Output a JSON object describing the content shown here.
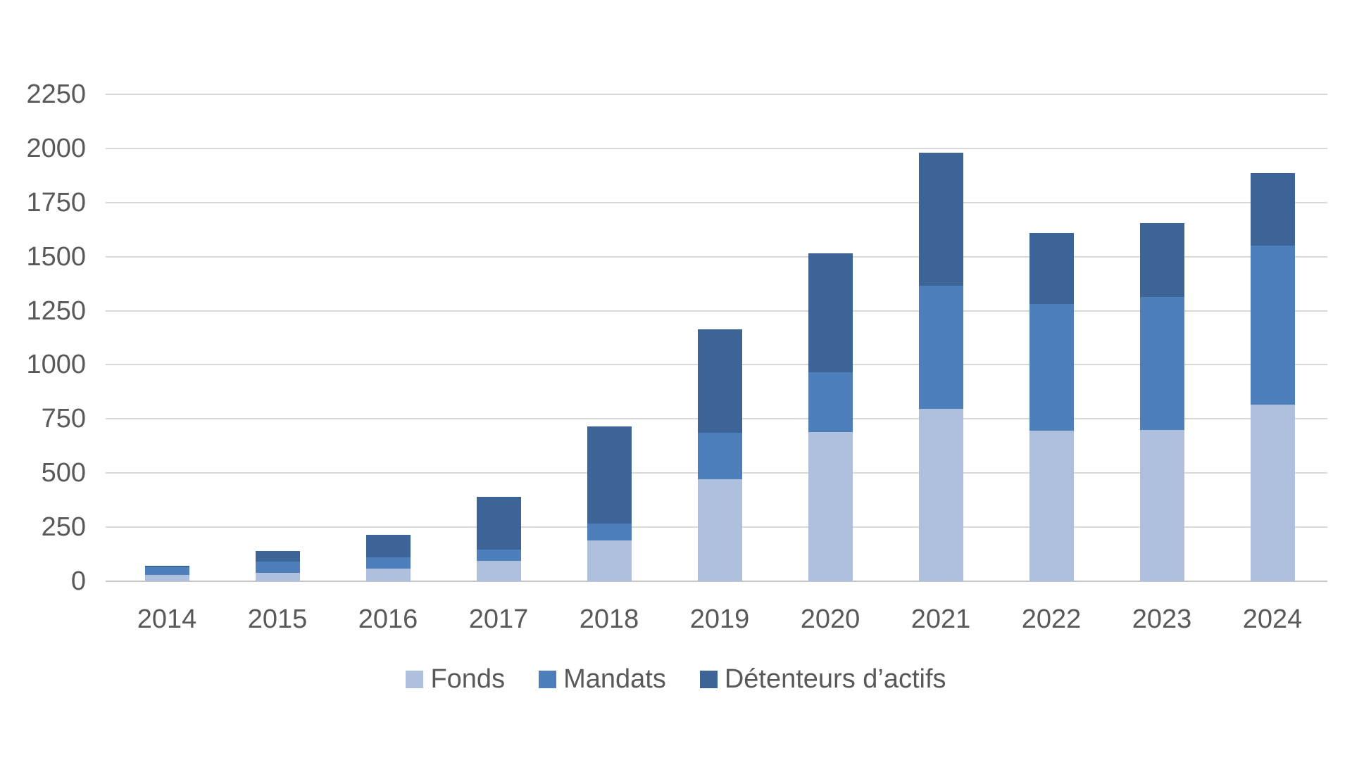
{
  "chart_data": {
    "type": "bar",
    "stacked": true,
    "title": "",
    "xlabel": "",
    "ylabel": "",
    "categories": [
      "2014",
      "2015",
      "2016",
      "2017",
      "2018",
      "2019",
      "2020",
      "2021",
      "2022",
      "2023",
      "2024"
    ],
    "series": [
      {
        "name": "Fonds",
        "color": "#aec0de",
        "values": [
          30,
          40,
          60,
          95,
          190,
          470,
          690,
          795,
          695,
          700,
          815
        ]
      },
      {
        "name": "Mandats",
        "color": "#4d80bb",
        "values": [
          35,
          50,
          50,
          50,
          75,
          215,
          275,
          570,
          585,
          615,
          735
        ]
      },
      {
        "name": "Détenteurs d’actifs",
        "color": "#3c6496",
        "values": [
          5,
          50,
          105,
          245,
          450,
          480,
          550,
          615,
          330,
          340,
          335
        ]
      }
    ],
    "y_ticks": [
      0,
      250,
      500,
      750,
      1000,
      1250,
      1500,
      1750,
      2000,
      2250
    ],
    "ylim": [
      0,
      2250
    ],
    "grid": true,
    "legend_position": "bottom"
  },
  "colors": {
    "background": "#ffffff",
    "gridline": "#d9d9d9",
    "axis_line": "#c6c6c6",
    "text": "#595959"
  }
}
